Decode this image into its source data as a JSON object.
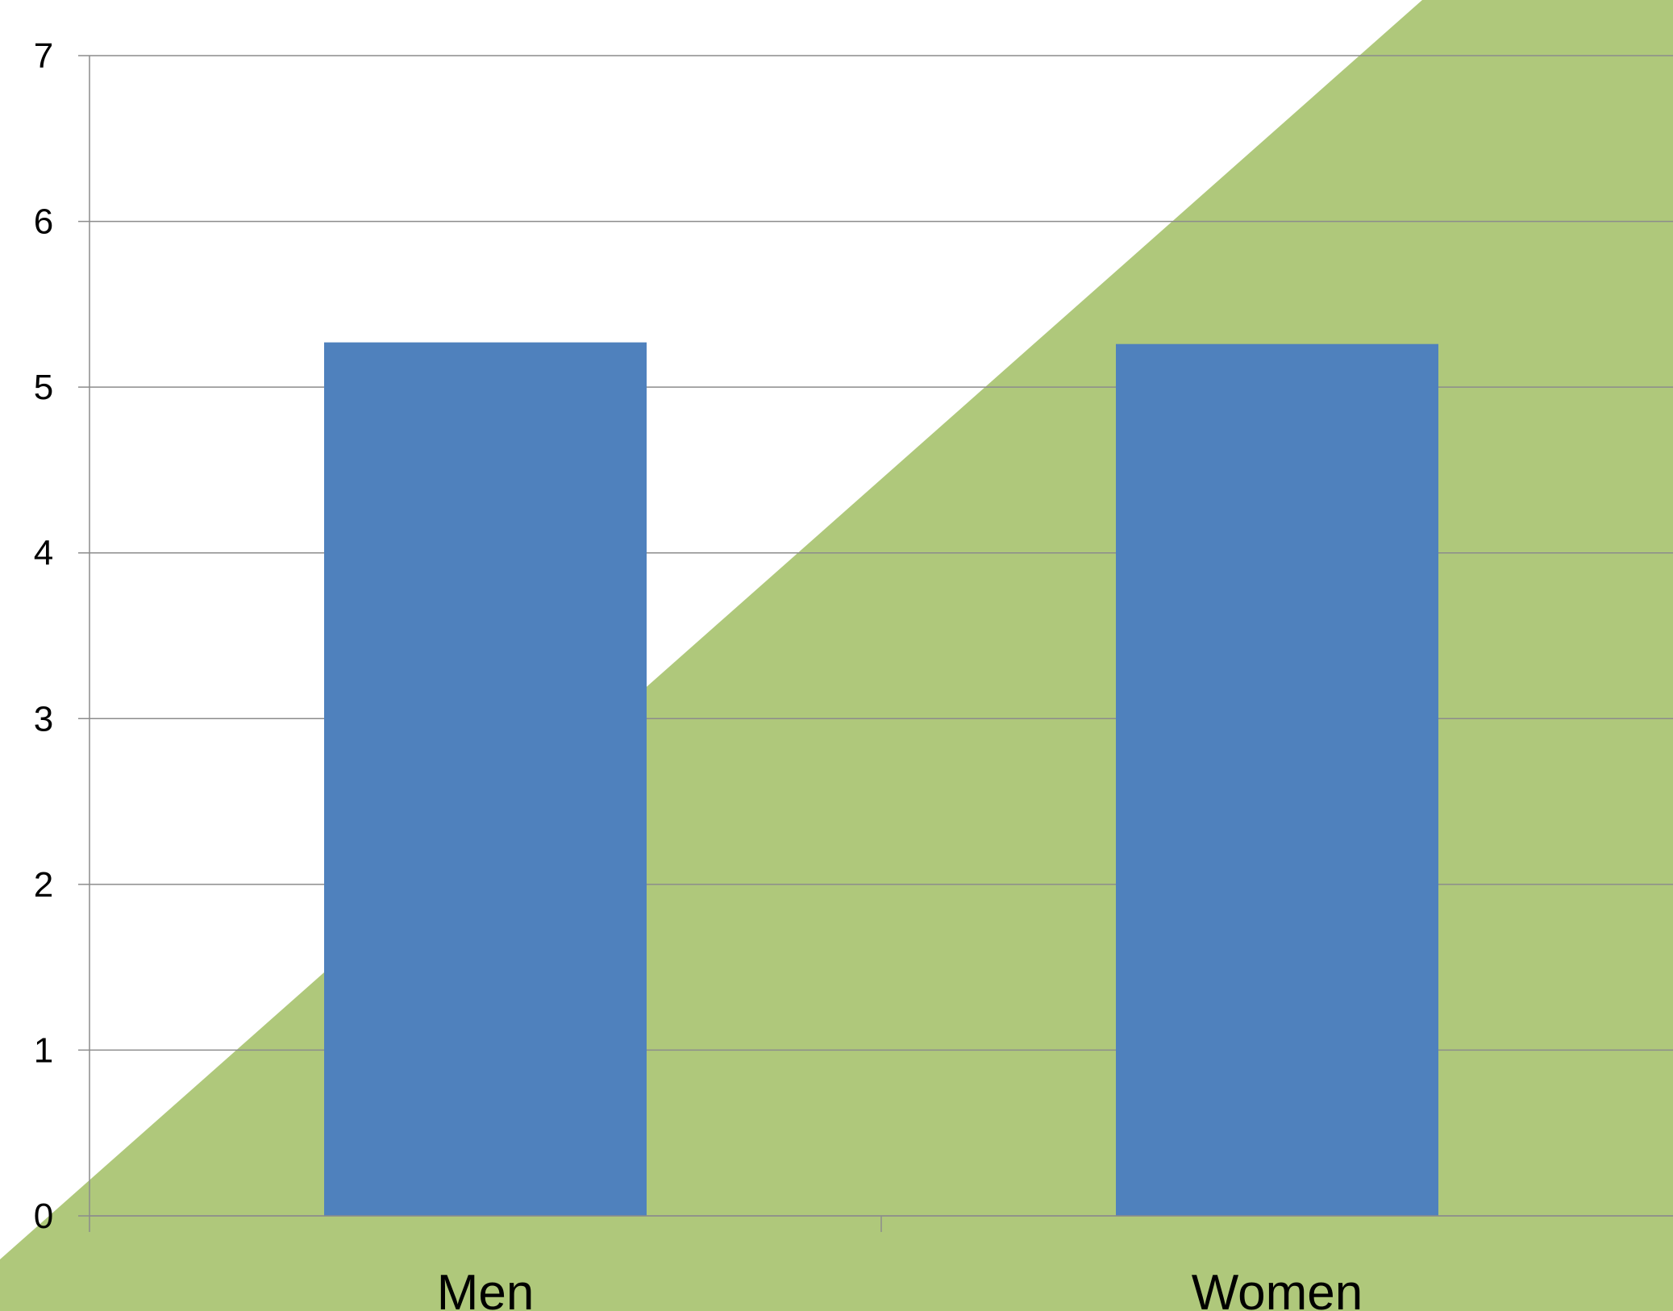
{
  "colors": {
    "bar": "#4f81bd",
    "background_band": "#afc87b",
    "gridline": "#8c8c8c",
    "axis": "#8c8c8c",
    "text": "#000000"
  },
  "chart_data": {
    "type": "bar",
    "title": "",
    "xlabel": "",
    "ylabel": "",
    "categories": [
      "Men",
      "Women"
    ],
    "values": [
      5.27,
      5.26
    ],
    "ylim": [
      0,
      7
    ],
    "yticks": [
      "0",
      "1",
      "2",
      "3",
      "4",
      "5",
      "6",
      "7"
    ],
    "grid": true,
    "legend": "none"
  }
}
